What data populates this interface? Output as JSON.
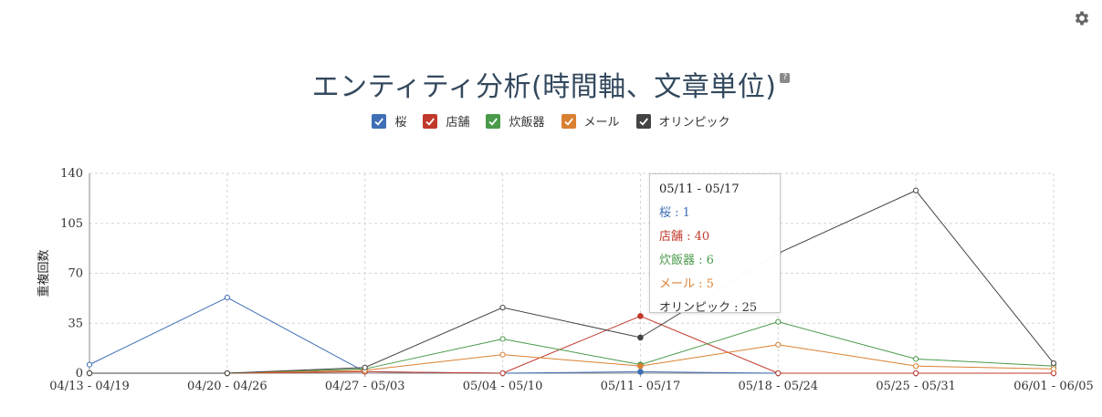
{
  "header": {
    "settings_icon": "gear-icon",
    "help_icon": "question-icon",
    "help_text": "?"
  },
  "chart_data": {
    "type": "line",
    "title": "エンティティ分析(時間軸、文章単位)",
    "ylabel": "重複回数",
    "xlabel": "",
    "ylim": [
      0,
      140
    ],
    "yticks": [
      0,
      35,
      70,
      105,
      140
    ],
    "grid": true,
    "legend_position": "top-center",
    "categories": [
      "04/13 - 04/19",
      "04/20 - 04/26",
      "04/27 - 05/03",
      "05/04 - 05/10",
      "05/11 - 05/17",
      "05/18 - 05/24",
      "05/25 - 05/31",
      "06/01 - 06/05"
    ],
    "series": [
      {
        "name": "桜",
        "color": "#3f6fb5",
        "values": [
          6,
          53,
          1,
          0,
          1,
          0,
          0,
          0
        ]
      },
      {
        "name": "店舗",
        "color": "#c0392b",
        "values": [
          0,
          0,
          1,
          0,
          40,
          0,
          0,
          0
        ]
      },
      {
        "name": "炊飯器",
        "color": "#4a9a4a",
        "values": [
          0,
          0,
          3,
          24,
          6,
          36,
          10,
          5
        ]
      },
      {
        "name": "メール",
        "color": "#d98032",
        "values": [
          0,
          0,
          2,
          13,
          5,
          20,
          5,
          3
        ]
      },
      {
        "name": "オリンピック",
        "color": "#444444",
        "values": [
          0,
          0,
          4,
          46,
          25,
          84,
          128,
          7
        ]
      }
    ],
    "tooltip": {
      "header": "05/11 - 05/17",
      "rows": [
        {
          "text": "桜 : 1",
          "color": "#3f6fb5"
        },
        {
          "text": "店舗 : 40",
          "color": "#c0392b"
        },
        {
          "text": "炊飯器 : 6",
          "color": "#4a9a4a"
        },
        {
          "text": "メール : 5",
          "color": "#d98032"
        },
        {
          "text": "オリンピック : 25",
          "color": "#333333"
        }
      ]
    }
  }
}
